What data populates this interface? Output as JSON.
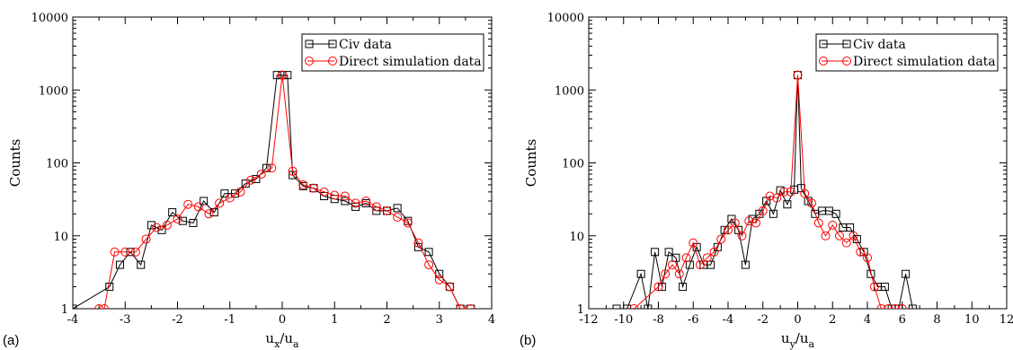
{
  "chart_data": [
    {
      "type": "line",
      "panel_label": "(a)",
      "xlabel_main": "u",
      "xlabel_sub1": "x",
      "xlabel_mid": "/u",
      "xlabel_sub2": "a",
      "ylabel": "Counts",
      "xlim": [
        -4,
        4
      ],
      "ylim": [
        1,
        10000
      ],
      "yscale": "log",
      "xticks": [
        -4,
        -3,
        -2,
        -1,
        0,
        1,
        2,
        3,
        4
      ],
      "yticks": [
        1,
        10,
        100,
        1000,
        10000
      ],
      "grid": false,
      "legend": "top-right",
      "series": [
        {
          "name": "Civ data",
          "color": "#000000",
          "marker": "square",
          "x": [
            -4.0,
            -3.3,
            -3.1,
            -2.9,
            -2.7,
            -2.5,
            -2.3,
            -2.1,
            -1.9,
            -1.7,
            -1.5,
            -1.3,
            -1.1,
            -0.9,
            -0.7,
            -0.5,
            -0.3,
            -0.1,
            0.0,
            0.1,
            0.2,
            0.4,
            0.6,
            0.8,
            1.0,
            1.2,
            1.4,
            1.6,
            1.8,
            2.0,
            2.2,
            2.4,
            2.6,
            2.8,
            3.0,
            3.2,
            3.4,
            3.6
          ],
          "y": [
            1,
            2,
            4,
            6,
            4,
            14,
            12,
            21,
            16,
            15,
            30,
            21,
            38,
            38,
            52,
            60,
            85,
            1600,
            1600,
            1600,
            68,
            48,
            45,
            35,
            32,
            30,
            25,
            28,
            22,
            22,
            24,
            16,
            7,
            6,
            3,
            2,
            1,
            1
          ]
        },
        {
          "name": "Direct simulation data",
          "color": "#ff0000",
          "marker": "circle",
          "x": [
            -3.5,
            -3.4,
            -3.2,
            -3.0,
            -2.8,
            -2.6,
            -2.4,
            -2.2,
            -2.0,
            -1.8,
            -1.6,
            -1.4,
            -1.2,
            -1.0,
            -0.8,
            -0.6,
            -0.4,
            -0.2,
            0.0,
            0.2,
            0.4,
            0.6,
            0.8,
            1.0,
            1.2,
            1.4,
            1.6,
            1.8,
            2.0,
            2.2,
            2.4,
            2.6,
            2.8,
            3.0,
            3.2,
            3.4,
            3.6
          ],
          "y": [
            1,
            1,
            6,
            6,
            6,
            9,
            13,
            14,
            17,
            27,
            25,
            20,
            28,
            33,
            40,
            58,
            70,
            85,
            1600,
            77,
            50,
            45,
            40,
            36,
            35,
            28,
            30,
            25,
            22,
            18,
            15,
            8,
            4,
            2.5,
            2,
            1,
            1
          ]
        }
      ]
    },
    {
      "type": "line",
      "panel_label": "(b)",
      "xlabel_main": "u",
      "xlabel_sub1": "y",
      "xlabel_mid": "/u",
      "xlabel_sub2": "a",
      "ylabel": "Counts",
      "xlim": [
        -12,
        12
      ],
      "ylim": [
        1,
        10000
      ],
      "yscale": "log",
      "xticks": [
        -12,
        -10,
        -8,
        -6,
        -4,
        -2,
        0,
        2,
        4,
        6,
        8,
        10,
        12
      ],
      "yticks": [
        1,
        10,
        100,
        1000,
        10000
      ],
      "grid": false,
      "legend": "top-right",
      "series": [
        {
          "name": "Civ data",
          "color": "#000000",
          "marker": "square",
          "x": [
            -10.4,
            -9.8,
            -9.0,
            -8.6,
            -8.2,
            -7.8,
            -7.4,
            -7.0,
            -6.6,
            -6.2,
            -5.8,
            -5.4,
            -5.0,
            -4.6,
            -4.2,
            -3.8,
            -3.4,
            -3.0,
            -2.6,
            -2.2,
            -1.8,
            -1.4,
            -1.0,
            -0.6,
            -0.2,
            0.0,
            0.2,
            0.6,
            1.0,
            1.4,
            1.8,
            2.2,
            2.6,
            3.0,
            3.4,
            3.8,
            4.2,
            4.6,
            5.0,
            5.4,
            5.8,
            6.2,
            6.6
          ],
          "y": [
            1,
            1,
            3,
            1,
            6,
            2,
            6,
            5,
            2,
            4,
            7,
            4,
            4,
            7,
            12,
            17,
            12,
            4,
            17,
            20,
            30,
            20,
            42,
            27,
            43,
            1600,
            45,
            30,
            20,
            22,
            22,
            20,
            13,
            13,
            9,
            6,
            3,
            2,
            2,
            1,
            1,
            3,
            1
          ]
        },
        {
          "name": "Direct simulation data",
          "color": "#ff0000",
          "marker": "circle",
          "x": [
            -9.4,
            -8.0,
            -7.6,
            -7.2,
            -6.8,
            -6.4,
            -6.0,
            -5.6,
            -5.2,
            -4.8,
            -4.4,
            -4.0,
            -3.6,
            -3.2,
            -2.8,
            -2.4,
            -2.0,
            -1.6,
            -1.2,
            -0.8,
            -0.4,
            0.0,
            0.4,
            0.8,
            1.2,
            1.6,
            2.0,
            2.4,
            2.8,
            3.2,
            3.6,
            4.0,
            4.4,
            4.8,
            5.2,
            5.6,
            6.0
          ],
          "y": [
            1,
            2,
            3,
            4,
            3,
            5,
            8,
            4,
            5,
            6,
            9,
            12,
            15,
            10,
            16,
            15,
            22,
            35,
            33,
            40,
            40,
            1600,
            38,
            28,
            15,
            10,
            14,
            10,
            8,
            10,
            6,
            5,
            2,
            1,
            1,
            1,
            1
          ]
        }
      ]
    }
  ]
}
